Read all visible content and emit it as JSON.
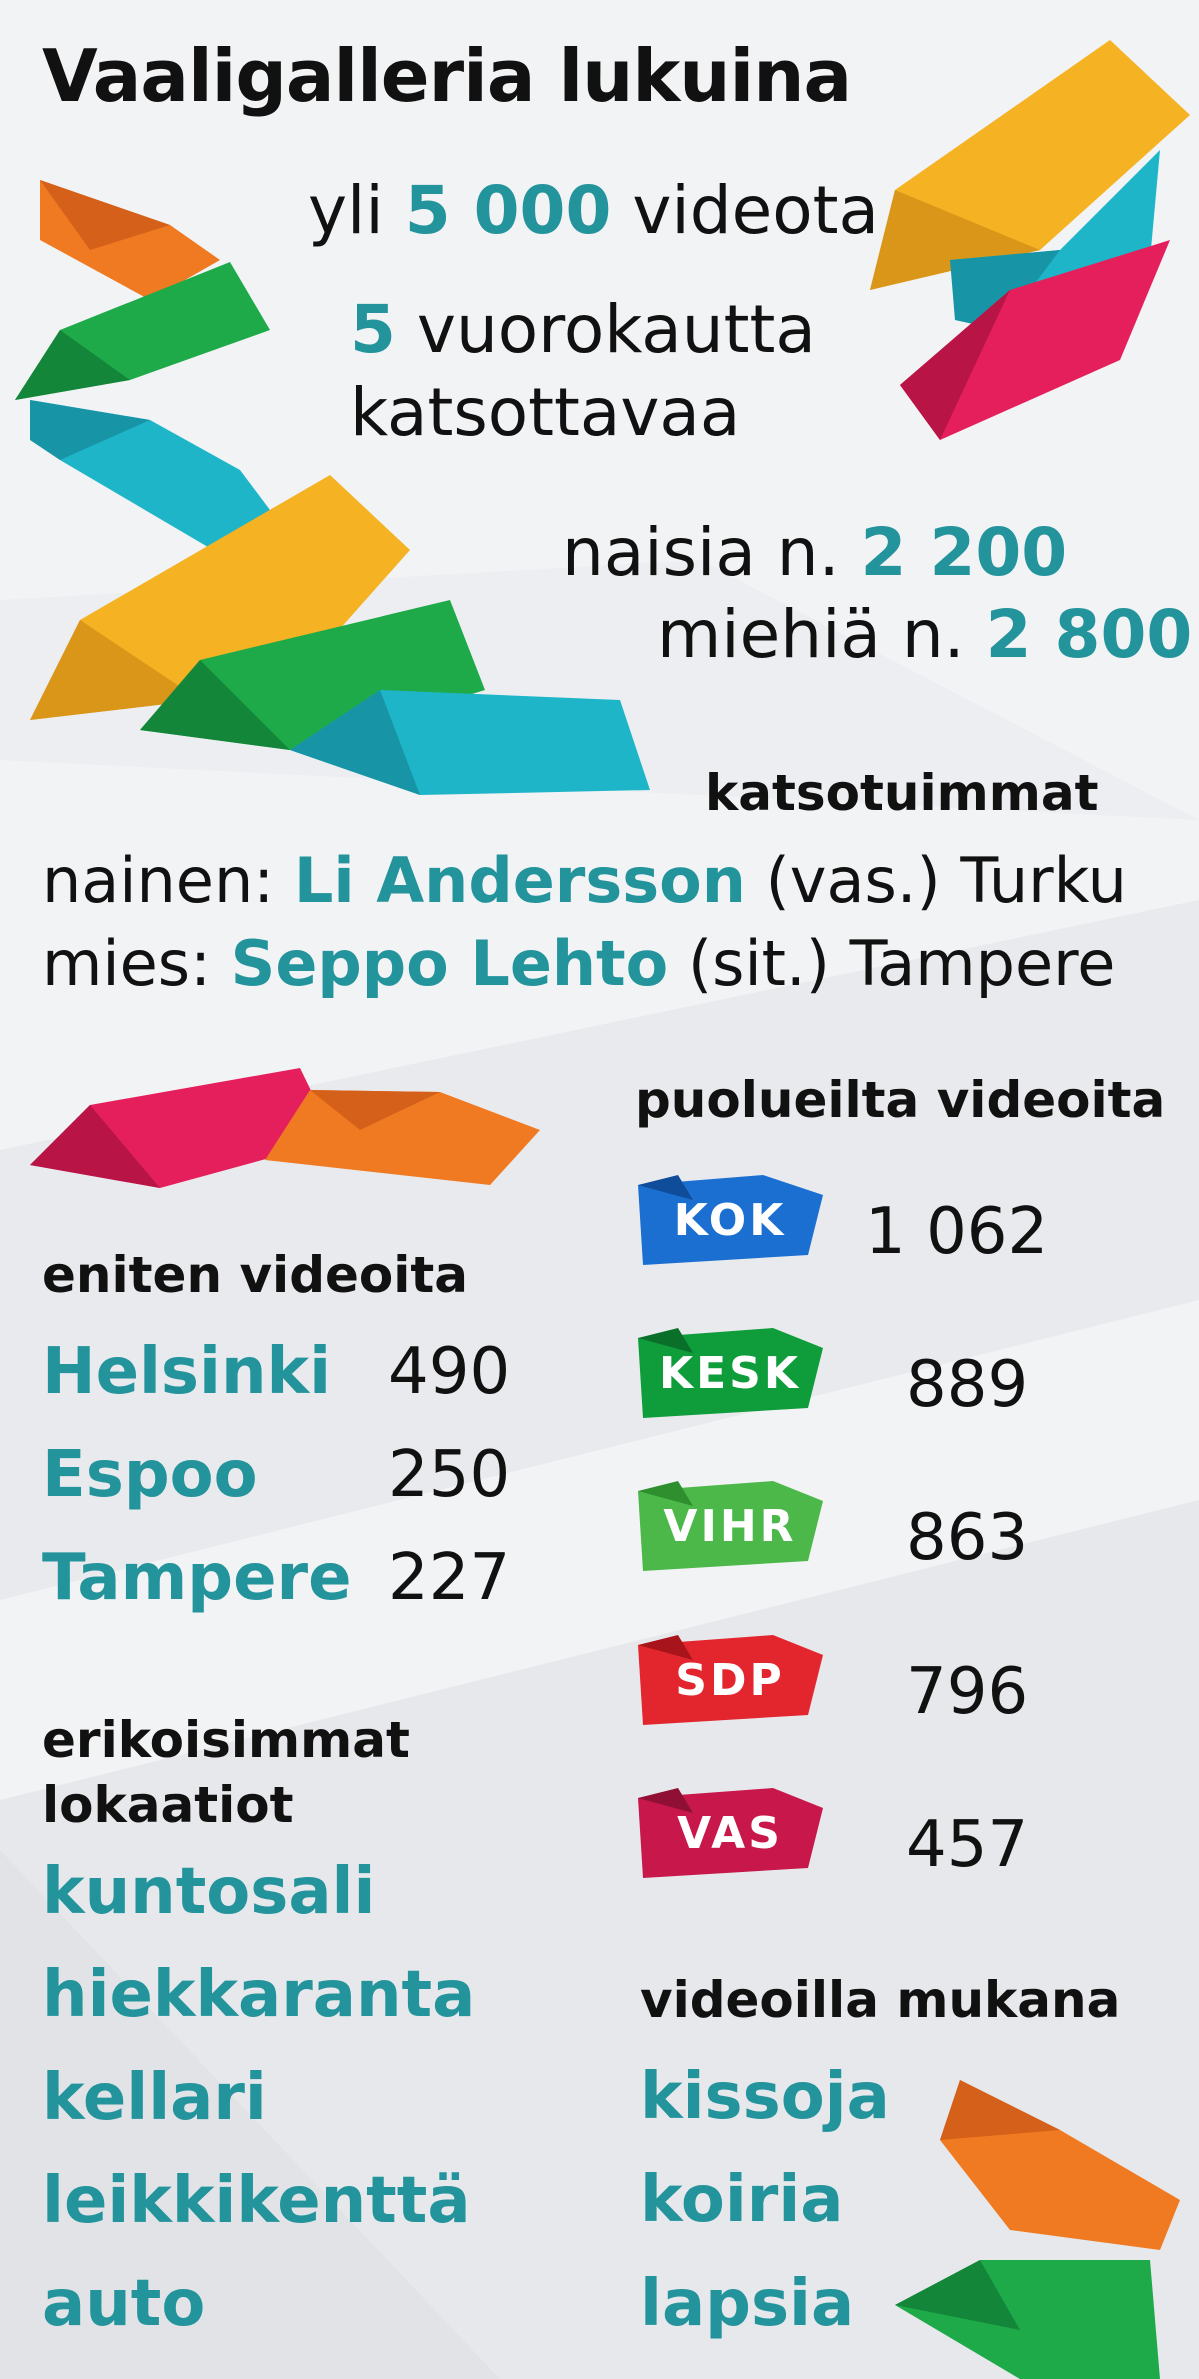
{
  "title": "Vaaligalleria lukuina",
  "videos": {
    "pre": "yli ",
    "value": "5 000",
    "post": " videota"
  },
  "days": {
    "value": "5",
    "post": " vuorokautta",
    "line2": "katsottavaa"
  },
  "women": {
    "pre": "naisia n. ",
    "value": "2 200"
  },
  "men": {
    "pre": "miehiä n. ",
    "value": "2 800"
  },
  "most_watched": {
    "header": "katsotuimmat",
    "woman": {
      "label": "nainen: ",
      "name": "Li Andersson",
      "rest": " (vas.) Turku"
    },
    "man": {
      "label": "mies: ",
      "name": "Seppo Lehto",
      "rest": " (sit.) Tampere"
    }
  },
  "most_videos": {
    "header": "eniten videoita",
    "rows": [
      {
        "city": "Helsinki",
        "count": "490"
      },
      {
        "city": "Espoo",
        "count": "250"
      },
      {
        "city": "Tampere",
        "count": "227"
      }
    ]
  },
  "special_locations": {
    "header_line1": "erikoisimmat",
    "header_line2": "lokaatiot",
    "items": [
      "kuntosali",
      "hiekkaranta",
      "kellari",
      "leikkikenttä",
      "auto"
    ]
  },
  "parties": {
    "header": "puolueilta videoita",
    "rows": [
      {
        "abbr": "KOK",
        "count": "1 062",
        "color": "#1a6fd1",
        "dark": "#0f4c99"
      },
      {
        "abbr": "KESK",
        "count": "889",
        "color": "#0f9c3a",
        "dark": "#0a6f29"
      },
      {
        "abbr": "VIHR",
        "count": "863",
        "color": "#4cb84a",
        "dark": "#2f8f2e"
      },
      {
        "abbr": "SDP",
        "count": "796",
        "color": "#e3262d",
        "dark": "#a8141b"
      },
      {
        "abbr": "VAS",
        "count": "457",
        "color": "#c7174b",
        "dark": "#8f0f35"
      }
    ]
  },
  "in_videos": {
    "header": "videoilla mukana",
    "items": [
      "kissoja",
      "koiria",
      "lapsia"
    ]
  }
}
